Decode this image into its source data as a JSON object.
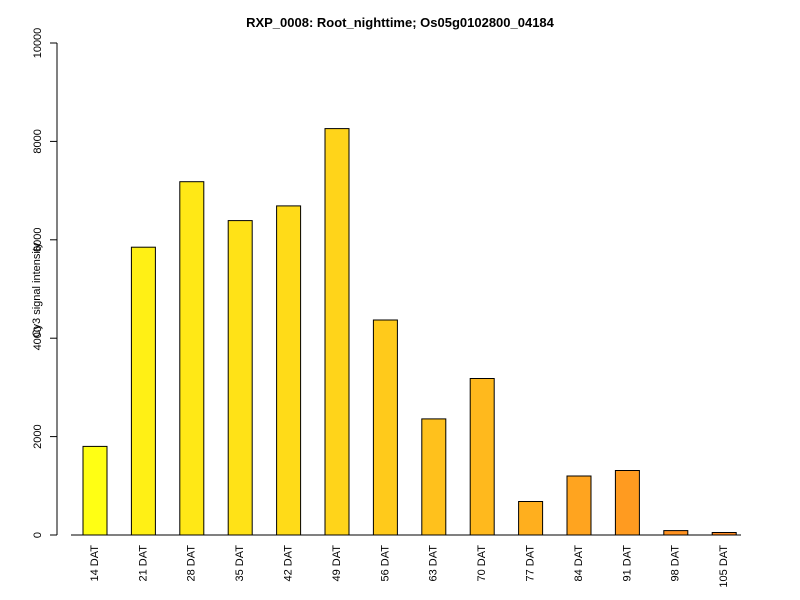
{
  "chart_data": {
    "type": "bar",
    "title": "RXP_0008: Root_nighttime; Os05g0102800_04184",
    "xlabel": "",
    "ylabel": "Cy3 signal intensity",
    "ylim": [
      0,
      10000
    ],
    "yticks": [
      0,
      2000,
      4000,
      6000,
      8000,
      10000
    ],
    "grid": false,
    "categories": [
      "14 DAT",
      "21 DAT",
      "28 DAT",
      "35 DAT",
      "42 DAT",
      "49 DAT",
      "56 DAT",
      "63 DAT",
      "70 DAT",
      "77 DAT",
      "84 DAT",
      "91 DAT",
      "98 DAT",
      "105 DAT"
    ],
    "values": [
      1800,
      5850,
      7180,
      6390,
      6690,
      8260,
      4370,
      2360,
      3180,
      680,
      1200,
      1310,
      90,
      50
    ],
    "colors": [
      "#FFFF14",
      "#FFF015",
      "#FFE816",
      "#FFE217",
      "#FFDB18",
      "#FFD41A",
      "#FFCA1B",
      "#FFC11C",
      "#FFB91D",
      "#FFAF1E",
      "#FFA41F",
      "#FF9B20",
      "#FF9221",
      "#FF8A22"
    ]
  }
}
